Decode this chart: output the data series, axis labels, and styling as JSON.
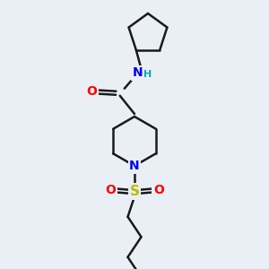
{
  "background_color": "#eaeff5",
  "bond_color": "#1a1a1a",
  "bond_width": 1.8,
  "atom_colors": {
    "O": "#ff0000",
    "N": "#0000ee",
    "S": "#bbbb00",
    "H": "#00aaaa",
    "C": "#1a1a1a"
  },
  "font_size_atoms": 10,
  "font_size_H": 8,
  "xlim": [
    0,
    10
  ],
  "ylim": [
    0,
    12
  ]
}
